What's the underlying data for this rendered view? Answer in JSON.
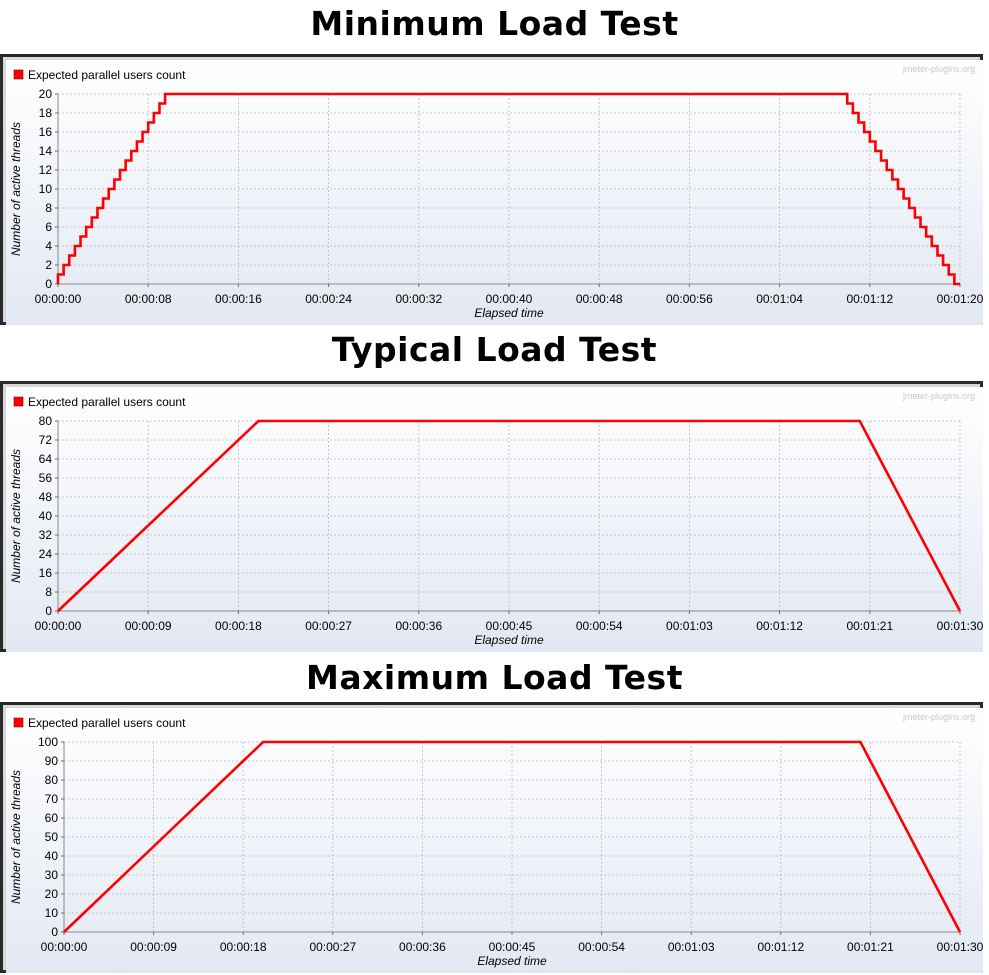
{
  "watermark": "jmeter-plugins.org",
  "series_color": "#ff0000",
  "chart_data": [
    {
      "type": "line",
      "title": "Minimum Load Test",
      "legend": "Expected parallel users count",
      "xlabel": "Elapsed time",
      "ylabel": "Number of active threads",
      "xlim": [
        0,
        80
      ],
      "ylim": [
        0,
        20
      ],
      "x_tick_labels": [
        "00:00:00",
        "00:00:08",
        "00:00:16",
        "00:00:24",
        "00:00:32",
        "00:00:40",
        "00:00:48",
        "00:00:56",
        "00:01:04",
        "00:01:12",
        "00:01:20"
      ],
      "y_tick_labels": [
        "0",
        "2",
        "4",
        "6",
        "8",
        "10",
        "12",
        "14",
        "16",
        "18",
        "20"
      ],
      "stepped": true,
      "series": [
        {
          "name": "Expected parallel users count",
          "x": [
            "00:00:00",
            "00:00:10",
            "00:01:10",
            "00:01:20"
          ],
          "values": [
            0,
            20,
            20,
            0
          ]
        }
      ]
    },
    {
      "type": "line",
      "title": "Typical Load Test",
      "legend": "Expected parallel users count",
      "xlabel": "Elapsed time",
      "ylabel": "Number of active threads",
      "xlim": [
        0,
        90
      ],
      "ylim": [
        0,
        80
      ],
      "x_tick_labels": [
        "00:00:00",
        "00:00:09",
        "00:00:18",
        "00:00:27",
        "00:00:36",
        "00:00:45",
        "00:00:54",
        "00:01:03",
        "00:01:12",
        "00:01:21",
        "00:01:30"
      ],
      "y_tick_labels": [
        "0",
        "8",
        "16",
        "24",
        "32",
        "40",
        "48",
        "56",
        "64",
        "72",
        "80"
      ],
      "stepped": false,
      "series": [
        {
          "name": "Expected parallel users count",
          "x": [
            "00:00:00",
            "00:00:20",
            "00:01:20",
            "00:01:30"
          ],
          "values": [
            0,
            80,
            80,
            0
          ]
        }
      ]
    },
    {
      "type": "line",
      "title": "Maximum Load Test",
      "legend": "Expected parallel users count",
      "xlabel": "Elapsed time",
      "ylabel": "Number of active threads",
      "xlim": [
        0,
        90
      ],
      "ylim": [
        0,
        100
      ],
      "x_tick_labels": [
        "00:00:00",
        "00:00:09",
        "00:00:18",
        "00:00:27",
        "00:00:36",
        "00:00:45",
        "00:00:54",
        "00:01:03",
        "00:01:12",
        "00:01:21",
        "00:01:30"
      ],
      "y_tick_labels": [
        "0",
        "10",
        "20",
        "30",
        "40",
        "50",
        "60",
        "70",
        "80",
        "90",
        "100"
      ],
      "stepped": false,
      "series": [
        {
          "name": "Expected parallel users count",
          "x": [
            "00:00:00",
            "00:00:20",
            "00:01:20",
            "00:01:30"
          ],
          "values": [
            0,
            100,
            100,
            0
          ]
        }
      ]
    }
  ]
}
